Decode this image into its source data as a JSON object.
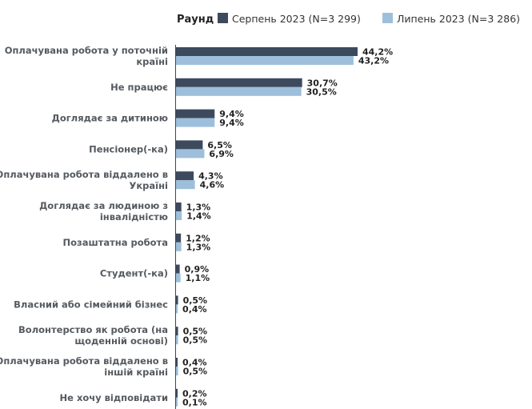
{
  "legend": {
    "title": "Раунд"
  },
  "chart_data": {
    "type": "bar",
    "orientation": "horizontal",
    "value_format": "percent, comma decimal",
    "categories": [
      [
        "Оплачувана робота у поточній",
        "країні"
      ],
      [
        "Не працює"
      ],
      [
        "Доглядає за дитиною"
      ],
      [
        "Пенсіонер(-ка)"
      ],
      [
        "Оплачувана робота віддалено в",
        "Україні"
      ],
      [
        "Доглядає за людиною з",
        "інвалідністю"
      ],
      [
        "Позаштатна робота"
      ],
      [
        "Студент(-ка)"
      ],
      [
        "Власний або сімейний бізнес"
      ],
      [
        "Волонтерство як робота (на",
        "щоденній основі)"
      ],
      [
        "Оплачувана робота віддалено в",
        "іншій країні"
      ],
      [
        "Не хочу відповідати"
      ]
    ],
    "series": [
      {
        "name": "Серпень 2023 (N=3 299)",
        "color": "#3d4a5e",
        "values": [
          44.2,
          30.7,
          9.4,
          6.5,
          4.3,
          1.3,
          1.2,
          0.9,
          0.5,
          0.5,
          0.4,
          0.2
        ],
        "labels": [
          "44,2%",
          "30,7%",
          "9,4%",
          "6,5%",
          "4,3%",
          "1,3%",
          "1,2%",
          "0,9%",
          "0,5%",
          "0,5%",
          "0,4%",
          "0,2%"
        ]
      },
      {
        "name": "Липень 2023 (N=3 286)",
        "color": "#9dbfdb",
        "values": [
          43.2,
          30.5,
          9.4,
          6.9,
          4.6,
          1.4,
          1.3,
          1.1,
          0.4,
          0.5,
          0.5,
          0.1
        ],
        "labels": [
          "43,2%",
          "30,5%",
          "9,4%",
          "6,9%",
          "4,6%",
          "1,4%",
          "1,3%",
          "1,1%",
          "0,4%",
          "0,5%",
          "0,5%",
          "0,1%"
        ]
      }
    ],
    "legend_position": "top",
    "grid": false
  }
}
